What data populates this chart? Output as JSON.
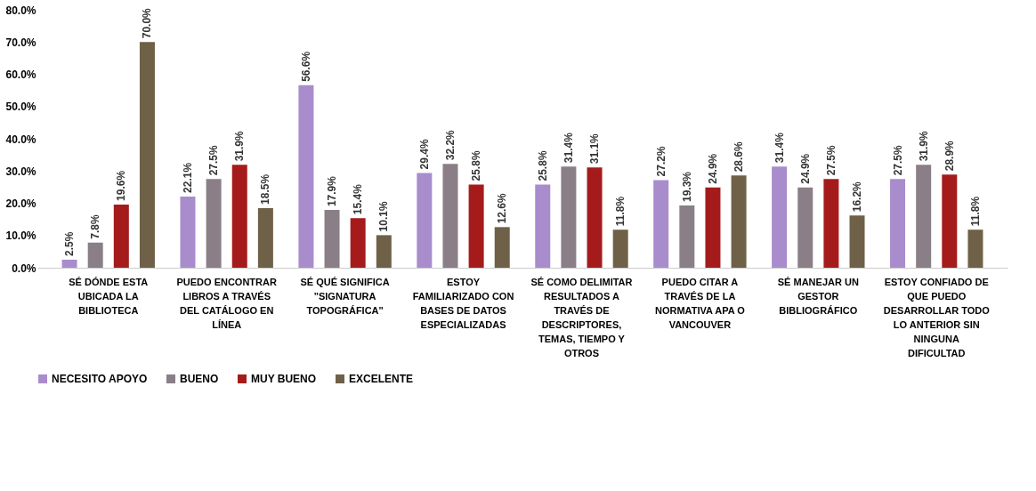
{
  "chart_data": {
    "type": "bar",
    "categories": [
      "SÉ DÓNDE ESTA UBICADA LA BIBLIOTECA",
      "PUEDO ENCONTRAR LIBROS A TRAVÉS DEL CATÁLOGO EN LÍNEA",
      "SÉ QUÉ SIGNIFICA \"SIGNATURA TOPOGRÁFICA\"",
      "ESTOY FAMILIARIZADO CON BASES DE DATOS ESPECIALIZADAS",
      "SÉ COMO DELIMITAR RESULTADOS A TRAVÉS DE DESCRIPTORES, TEMAS, TIEMPO Y OTROS",
      "PUEDO CITAR A TRAVÉS DE LA NORMATIVA APA O VANCOUVER",
      "SÉ MANEJAR UN GESTOR BIBLIOGRÁFICO",
      "ESTOY CONFIADO DE QUE PUEDO DESARROLLAR TODO LO ANTERIOR SIN NINGUNA DIFICULTAD"
    ],
    "series": [
      {
        "name": "NECESITO APOYO",
        "color": "#a98ccc",
        "values": [
          2.5,
          22.1,
          56.6,
          29.4,
          25.8,
          27.2,
          31.4,
          27.5
        ],
        "value_labels": [
          "2.5%",
          "22.1%",
          "56.6%",
          "29.4%",
          "25.8%",
          "27.2%",
          "31.4%",
          "27.5%"
        ]
      },
      {
        "name": "BUENO",
        "color": "#8a7f86",
        "values": [
          7.8,
          27.5,
          17.9,
          32.2,
          31.4,
          19.3,
          24.9,
          31.9
        ],
        "value_labels": [
          "7.8%",
          "27.5%",
          "17.9%",
          "32.2%",
          "31.4%",
          "19.3%",
          "24.9%",
          "31.9%"
        ]
      },
      {
        "name": "MUY BUENO",
        "color": "#a51b1b",
        "values": [
          19.6,
          31.9,
          15.4,
          25.8,
          31.1,
          24.9,
          27.5,
          28.9
        ],
        "value_labels": [
          "19.6%",
          "31.9%",
          "15.4%",
          "25.8%",
          "31.1%",
          "24.9%",
          "27.5%",
          "28.9%"
        ]
      },
      {
        "name": "EXCELENTE",
        "color": "#6e6148",
        "values": [
          70.0,
          18.5,
          10.1,
          12.6,
          11.8,
          28.6,
          16.2,
          11.8
        ],
        "value_labels": [
          "70.0%",
          "18.5%",
          "10.1%",
          "12.6%",
          "11.8%",
          "28.6%",
          "16.2%",
          "11.8%"
        ]
      }
    ],
    "ylim": [
      0,
      80
    ],
    "yticks": [
      {
        "value": 0,
        "label": "0.0%"
      },
      {
        "value": 10,
        "label": "10.0%"
      },
      {
        "value": 20,
        "label": "20.0%"
      },
      {
        "value": 30,
        "label": "30.0%"
      },
      {
        "value": 40,
        "label": "40.0%"
      },
      {
        "value": 50,
        "label": "50.0%"
      },
      {
        "value": 60,
        "label": "60.0%"
      },
      {
        "value": 70,
        "label": "70.0%"
      },
      {
        "value": 80,
        "label": "80.0%"
      }
    ],
    "grid": false,
    "legend": "bottom"
  }
}
